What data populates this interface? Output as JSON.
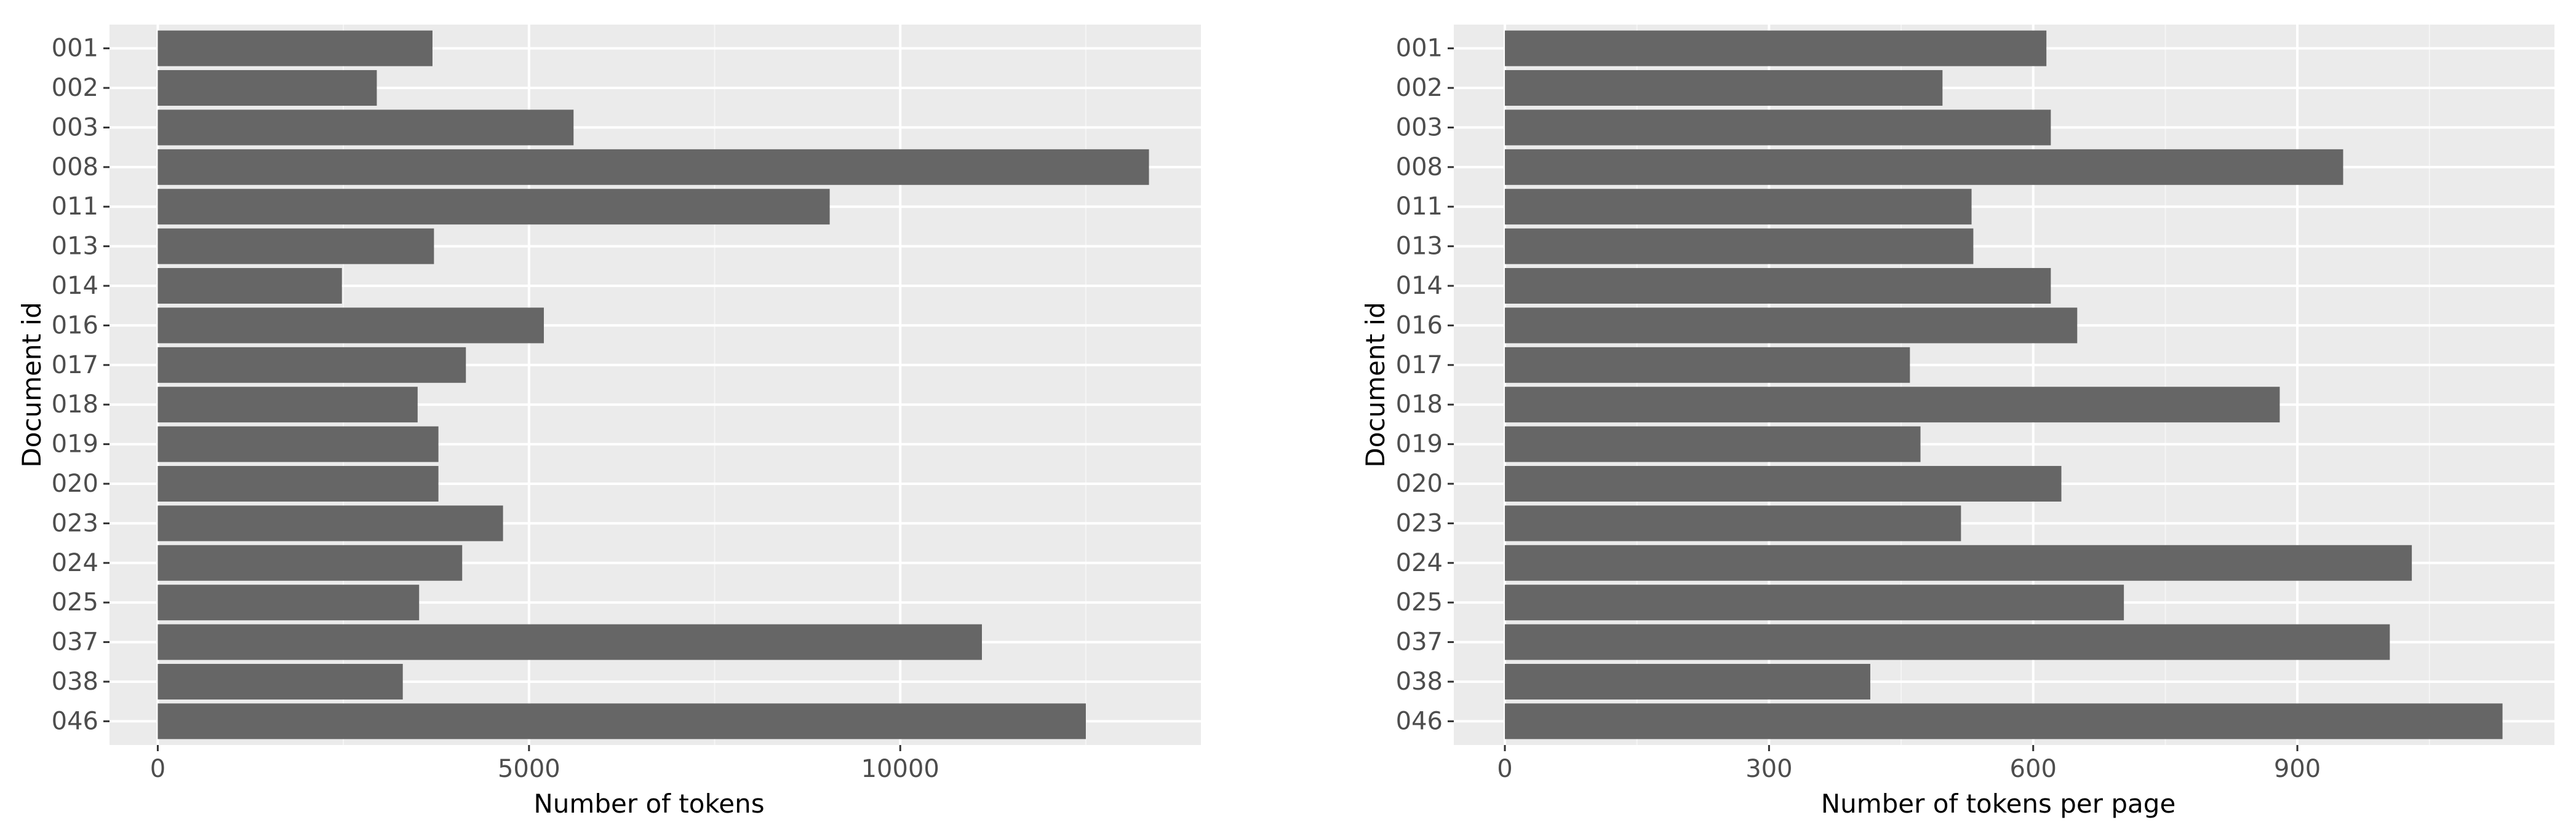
{
  "chart_data": [
    {
      "type": "bar",
      "orientation": "horizontal",
      "categories": [
        "001",
        "002",
        "003",
        "008",
        "011",
        "013",
        "014",
        "016",
        "017",
        "018",
        "019",
        "020",
        "023",
        "024",
        "025",
        "037",
        "038",
        "046"
      ],
      "values": [
        3700,
        2950,
        5600,
        13350,
        9050,
        3720,
        2480,
        5200,
        4150,
        3500,
        3780,
        3780,
        4650,
        4100,
        3520,
        11100,
        3300,
        12500
      ],
      "xlabel": "Number of tokens",
      "ylabel": "Document id",
      "xlim": [
        -650,
        14050
      ],
      "xticks": [
        0,
        5000,
        10000
      ],
      "xtick_labels": [
        "0",
        "5000",
        "10000"
      ],
      "grid": true,
      "bar_color": "#666666",
      "panel_color": "#ebebeb"
    },
    {
      "type": "bar",
      "orientation": "horizontal",
      "categories": [
        "001",
        "002",
        "003",
        "008",
        "011",
        "013",
        "014",
        "016",
        "017",
        "018",
        "019",
        "020",
        "023",
        "024",
        "025",
        "037",
        "038",
        "046"
      ],
      "values": [
        615,
        497,
        620,
        952,
        530,
        532,
        620,
        650,
        460,
        880,
        472,
        632,
        518,
        1030,
        703,
        1005,
        415,
        1133
      ],
      "xlabel": "Number of tokens per page",
      "ylabel": "Document id",
      "xlim": [
        -58,
        1192
      ],
      "xticks": [
        0,
        300,
        600,
        900
      ],
      "xtick_labels": [
        "0",
        "300",
        "600",
        "900"
      ],
      "grid": true,
      "bar_color": "#666666",
      "panel_color": "#ebebeb"
    }
  ]
}
